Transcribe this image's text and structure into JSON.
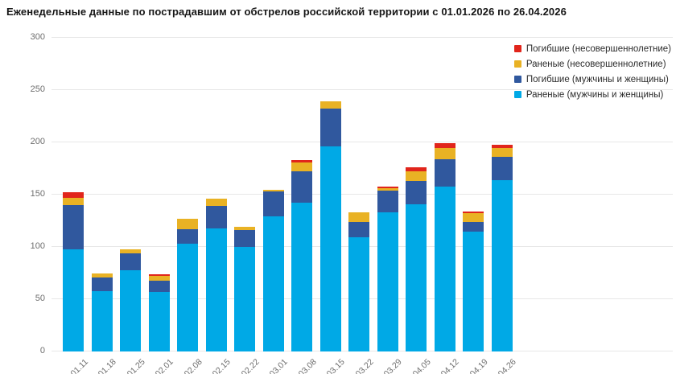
{
  "title": "Еженедельные данные по пострадавшим от обстрелов российской территории с 01.01.2026 по 26.04.2026",
  "colors": {
    "cyan": "#00a9e6",
    "darkblue": "#30589e",
    "yellow": "#e9b224",
    "red": "#e1251b"
  },
  "chart_data": {
    "type": "bar",
    "stacked": true,
    "title": "Еженедельные данные по пострадавшим от обстрелов российской территории с 01.01.2026 по 26.04.2026",
    "categories": [
      "01.11",
      "01.18",
      "01.25",
      "02.01",
      "02.08",
      "02.15",
      "02.22",
      "03.01",
      "03.08",
      "03.15",
      "03.22",
      "03.29",
      "04.05",
      "04.12",
      "04.19",
      "04.26"
    ],
    "series": [
      {
        "name": "Раненые (мужчины и женщины)",
        "color_key": "cyan",
        "values": [
          98,
          58,
          78,
          57,
          103,
          118,
          100,
          129,
          142,
          196,
          109,
          133,
          141,
          158,
          115,
          164
        ]
      },
      {
        "name": "Погибшие (мужчины и женщины)",
        "color_key": "darkblue",
        "values": [
          42,
          13,
          16,
          11,
          14,
          21,
          16,
          24,
          30,
          36,
          15,
          21,
          22,
          26,
          9,
          22
        ]
      },
      {
        "name": "Раненые (несовершеннолетние)",
        "color_key": "yellow",
        "values": [
          7,
          4,
          4,
          4,
          10,
          7,
          3,
          2,
          9,
          7,
          9,
          2,
          9,
          11,
          8,
          9
        ]
      },
      {
        "name": "Погибшие (несовершеннолетние)",
        "color_key": "red",
        "values": [
          5,
          0,
          0,
          2,
          0,
          0,
          0,
          0,
          2,
          0,
          0,
          2,
          4,
          4,
          2,
          3
        ]
      }
    ],
    "totals": [
      152,
      75,
      98,
      74,
      127,
      146,
      119,
      155,
      183,
      239,
      133,
      158,
      176,
      199,
      134,
      198
    ],
    "legend_order_top_to_bottom": [
      "Погибшие (несовершеннолетние)",
      "Раненые (несовершеннолетние)",
      "Погибшие (мужчины и женщины)",
      "Раненые (мужчины и женщины)"
    ],
    "yticks": [
      0,
      50,
      100,
      150,
      200,
      250,
      300
    ],
    "ylim": [
      0,
      300
    ],
    "grid": true,
    "legend_position": "top-right",
    "xlabel": "",
    "ylabel": ""
  }
}
